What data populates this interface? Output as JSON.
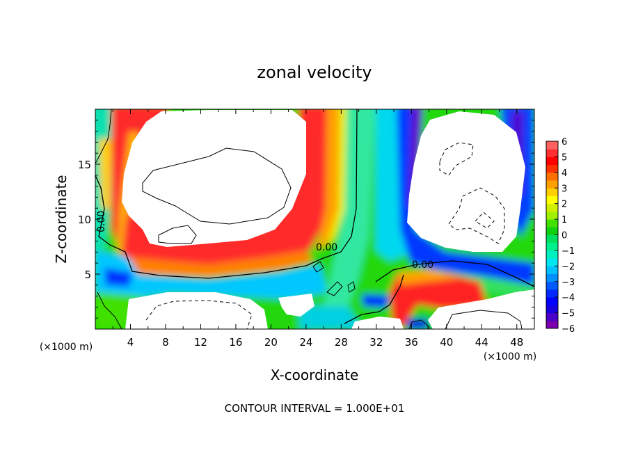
{
  "chart_data": {
    "type": "heatmap",
    "title": "zonal velocity",
    "xlabel": "X-coordinate",
    "ylabel": "Z-coordinate",
    "x_unit": "(×1000 m)",
    "y_unit": "(×1000 m)",
    "xlim": [
      0,
      50
    ],
    "ylim": [
      0,
      20
    ],
    "x_ticks": [
      "4",
      "8",
      "12",
      "16",
      "20",
      "24",
      "28",
      "32",
      "36",
      "40",
      "44",
      "48"
    ],
    "y_ticks": [
      "5",
      "10",
      "15"
    ],
    "footer": "CONTOUR INTERVAL = 1.000E+01",
    "contour_labels": [
      "0.00",
      "0.00",
      "0.00"
    ],
    "colorbar": {
      "ticks": [
        "6",
        "5",
        "4",
        "3",
        "2",
        "1",
        "0",
        "−1",
        "−2",
        "−3",
        "−4",
        "−5",
        "−6"
      ],
      "levels": [
        -6,
        -5.5,
        -5,
        -4.5,
        -4,
        -3.5,
        -3,
        -2.5,
        -2,
        -1.5,
        -1,
        -0.5,
        0,
        0.5,
        1,
        1.5,
        2,
        2.5,
        3,
        3.5,
        4,
        4.5,
        5,
        5.5,
        6
      ],
      "colors": [
        "#7a00b0",
        "#4a00c8",
        "#1800e0",
        "#0000ff",
        "#0028ff",
        "#005aff",
        "#0090ff",
        "#00c0ff",
        "#00e6f0",
        "#00f0c0",
        "#00f090",
        "#00e060",
        "#10d010",
        "#40e000",
        "#a0f000",
        "#d0f000",
        "#ffff00",
        "#ffd000",
        "#ffa000",
        "#ff7000",
        "#ff3000",
        "#ff0000",
        "#ff3030",
        "#ff6060",
        "#ff9090"
      ]
    },
    "grid": false,
    "legend": "none"
  }
}
